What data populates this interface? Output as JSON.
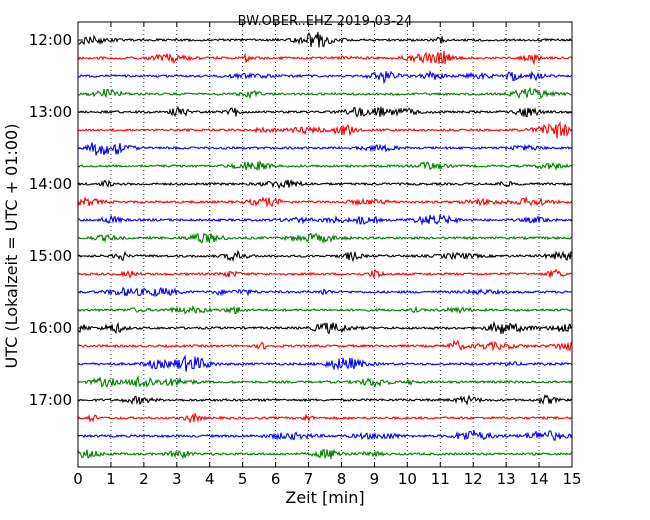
{
  "chart_data": {
    "type": "line",
    "title": "BW.OBER..EHZ 2019-03-24",
    "xlabel": "Zeit  [min]",
    "ylabel": "UTC (Lokalzeit = UTC + 01:00)",
    "xlim": [
      0,
      15
    ],
    "x_ticks": [
      "0",
      "1",
      "2",
      "3",
      "4",
      "5",
      "6",
      "7",
      "8",
      "9",
      "10",
      "11",
      "12",
      "13",
      "14",
      "15"
    ],
    "y_tick_labels": [
      "12:00",
      "13:00",
      "14:00",
      "15:00",
      "16:00",
      "17:00"
    ],
    "grid": "vertical dotted",
    "trace_colors": [
      "#000000",
      "#ff0000",
      "#0000ff",
      "#007f00"
    ],
    "traces": [
      {
        "start": "12:00",
        "color": "#000000"
      },
      {
        "start": "12:15",
        "color": "#ff0000"
      },
      {
        "start": "12:30",
        "color": "#0000ff"
      },
      {
        "start": "12:45",
        "color": "#007f00"
      },
      {
        "start": "13:00",
        "color": "#000000"
      },
      {
        "start": "13:15",
        "color": "#ff0000"
      },
      {
        "start": "13:30",
        "color": "#0000ff"
      },
      {
        "start": "13:45",
        "color": "#007f00"
      },
      {
        "start": "14:00",
        "color": "#000000"
      },
      {
        "start": "14:15",
        "color": "#ff0000"
      },
      {
        "start": "14:30",
        "color": "#0000ff"
      },
      {
        "start": "14:45",
        "color": "#007f00"
      },
      {
        "start": "15:00",
        "color": "#000000"
      },
      {
        "start": "15:15",
        "color": "#ff0000"
      },
      {
        "start": "15:30",
        "color": "#0000ff"
      },
      {
        "start": "15:45",
        "color": "#007f00"
      },
      {
        "start": "16:00",
        "color": "#000000"
      },
      {
        "start": "16:15",
        "color": "#ff0000"
      },
      {
        "start": "16:30",
        "color": "#0000ff"
      },
      {
        "start": "16:45",
        "color": "#007f00"
      },
      {
        "start": "17:00",
        "color": "#000000"
      },
      {
        "start": "17:15",
        "color": "#ff0000"
      },
      {
        "start": "17:30",
        "color": "#0000ff"
      },
      {
        "start": "17:45",
        "color": "#007f00"
      }
    ]
  }
}
